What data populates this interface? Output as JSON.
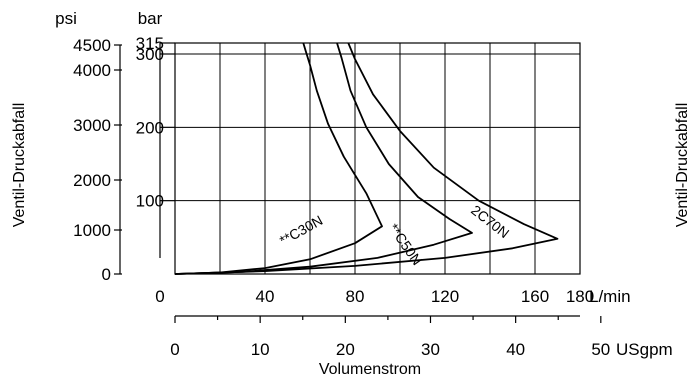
{
  "chart_data": {
    "type": "line",
    "title": "",
    "xlabel": "Volumenstrom",
    "ylabel": "Ventil-Druckabfall",
    "ylabel_right": "Ventil-Druckabfall",
    "x_unit_primary": "L/min",
    "x_unit_secondary": "USgpm",
    "y_unit_primary": "bar",
    "y_unit_secondary": "psi",
    "xlim": [
      0,
      180
    ],
    "ylim": [
      0,
      315
    ],
    "grid": true,
    "x_ticks": [
      "0",
      "40",
      "80",
      "120",
      "160",
      "180"
    ],
    "x_ticks_secondary": [
      "0",
      "10",
      "20",
      "30",
      "40",
      "50"
    ],
    "y_ticks_bar": [
      "315",
      "300",
      "200",
      "100"
    ],
    "y_ticks_psi": [
      "4500",
      "4000",
      "3000",
      "2000",
      "1000",
      "0"
    ],
    "series": [
      {
        "name": "**C30N",
        "x": [
          0,
          20,
          40,
          60,
          80,
          92,
          85,
          75,
          68,
          63,
          60,
          58,
          57
        ],
        "y": [
          0,
          2,
          8,
          20,
          42,
          65,
          110,
          160,
          205,
          250,
          285,
          305,
          315
        ]
      },
      {
        "name": "**C50N",
        "x": [
          0,
          30,
          60,
          90,
          115,
          132,
          122,
          108,
          95,
          85,
          78,
          74,
          72
        ],
        "y": [
          0,
          3,
          10,
          22,
          40,
          56,
          75,
          105,
          150,
          200,
          250,
          295,
          315
        ]
      },
      {
        "name": "2C70N",
        "x": [
          0,
          40,
          80,
          120,
          150,
          170,
          155,
          135,
          115,
          100,
          88,
          80,
          77
        ],
        "y": [
          0,
          4,
          11,
          22,
          35,
          48,
          68,
          100,
          145,
          195,
          245,
          293,
          315
        ]
      }
    ]
  }
}
